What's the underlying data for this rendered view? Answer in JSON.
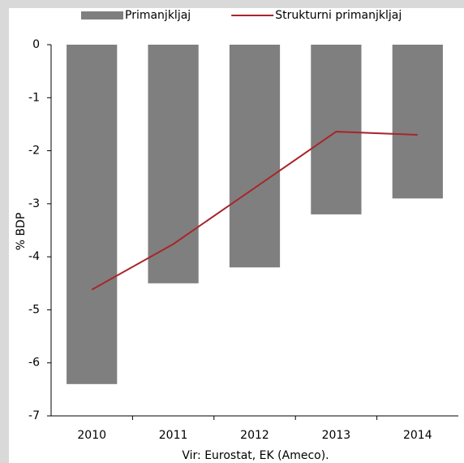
{
  "chart_data": {
    "type": "bar",
    "categories": [
      "2010",
      "2011",
      "2012",
      "2013",
      "2014"
    ],
    "series": [
      {
        "name": "Primanjkljaj",
        "type": "bar",
        "color": "#7f7f7f",
        "values": [
          -6.4,
          -4.5,
          -4.2,
          -3.2,
          -2.9
        ]
      },
      {
        "name": "Strukturni primanjkljaj",
        "type": "line",
        "color": "#a8262b",
        "values": [
          -4.62,
          -3.76,
          -2.7,
          -1.64,
          -1.7
        ]
      }
    ],
    "ylim": [
      -7,
      0
    ],
    "yticks": [
      0,
      -1,
      -2,
      -3,
      -4,
      -5,
      -6,
      -7
    ],
    "ylabel": "% BDP",
    "source": "Vir: Eurostat, EK (Ameco).",
    "legend": "top"
  }
}
